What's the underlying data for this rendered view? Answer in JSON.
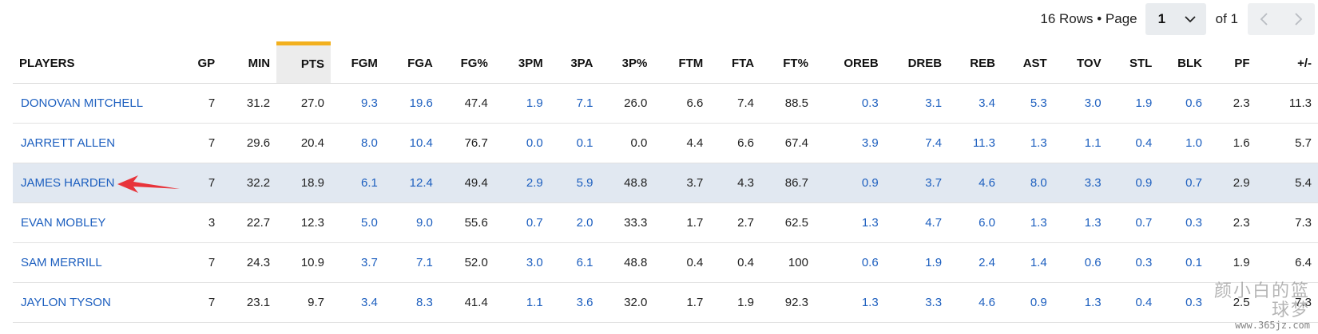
{
  "pagination": {
    "rows_text": "16 Rows • Page",
    "page_value": "1",
    "of_text": "of 1"
  },
  "table": {
    "columns": [
      "PLAYERS",
      "GP",
      "MIN",
      "PTS",
      "FGM",
      "FGA",
      "FG%",
      "3PM",
      "3PA",
      "3P%",
      "FTM",
      "FTA",
      "FT%",
      "OREB",
      "DREB",
      "REB",
      "AST",
      "TOV",
      "STL",
      "BLK",
      "PF",
      "+/-"
    ],
    "sorted_column": "PTS",
    "rows": [
      [
        "DONOVAN MITCHELL",
        "7",
        "31.2",
        "27.0",
        "9.3",
        "19.6",
        "47.4",
        "1.9",
        "7.1",
        "26.0",
        "6.6",
        "7.4",
        "88.5",
        "0.3",
        "3.1",
        "3.4",
        "5.3",
        "3.0",
        "1.9",
        "0.6",
        "2.3",
        "11.3"
      ],
      [
        "JARRETT ALLEN",
        "7",
        "29.6",
        "20.4",
        "8.0",
        "10.4",
        "76.7",
        "0.0",
        "0.1",
        "0.0",
        "4.4",
        "6.6",
        "67.4",
        "3.9",
        "7.4",
        "11.3",
        "1.3",
        "1.1",
        "0.4",
        "1.0",
        "1.6",
        "5.7"
      ],
      [
        "JAMES HARDEN",
        "7",
        "32.2",
        "18.9",
        "6.1",
        "12.4",
        "49.4",
        "2.9",
        "5.9",
        "48.8",
        "3.7",
        "4.3",
        "86.7",
        "0.9",
        "3.7",
        "4.6",
        "8.0",
        "3.3",
        "0.9",
        "0.7",
        "2.9",
        "5.4"
      ],
      [
        "EVAN MOBLEY",
        "3",
        "22.7",
        "12.3",
        "5.0",
        "9.0",
        "55.6",
        "0.7",
        "2.0",
        "33.3",
        "1.7",
        "2.7",
        "62.5",
        "1.3",
        "4.7",
        "6.0",
        "1.3",
        "1.3",
        "0.7",
        "0.3",
        "2.3",
        "7.3"
      ],
      [
        "SAM MERRILL",
        "7",
        "24.3",
        "10.9",
        "3.7",
        "7.1",
        "52.0",
        "3.0",
        "6.1",
        "48.8",
        "0.4",
        "0.4",
        "100",
        "0.6",
        "1.9",
        "2.4",
        "1.4",
        "0.6",
        "0.3",
        "0.1",
        "1.9",
        "6.4"
      ],
      [
        "JAYLON TYSON",
        "7",
        "23.1",
        "9.7",
        "3.4",
        "8.3",
        "41.4",
        "1.1",
        "3.6",
        "32.0",
        "1.7",
        "1.9",
        "92.3",
        "1.3",
        "3.3",
        "4.6",
        "0.9",
        "1.3",
        "0.4",
        "0.3",
        "2.5",
        "7.3"
      ]
    ],
    "highlighted_row": 2
  },
  "colors": {
    "link": "#1d5fbf",
    "sort_accent": "#f2b01e",
    "highlight_row": "#e1e8f1",
    "annotation_arrow": "#e8343b"
  },
  "icons": {
    "dropdown": "chevron-down-icon",
    "prev": "chevron-left-icon",
    "next": "chevron-right-icon"
  },
  "watermark": {
    "text": "颜小白的篮球梦",
    "url": "www.365jz.com"
  }
}
